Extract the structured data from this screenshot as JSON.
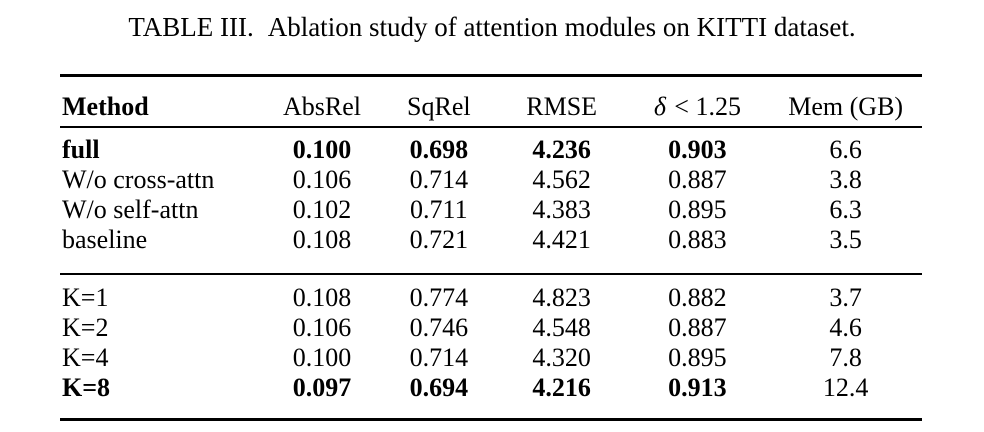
{
  "title": {
    "label": "TABLE III.",
    "caption": "Ablation study of attention modules on KITTI dataset."
  },
  "table": {
    "header": {
      "method": "Method",
      "absrel": "AbsRel",
      "sqrel": "SqRel",
      "rmse": "RMSE",
      "delta_symbol": "δ",
      "delta_rest": "< 1.25",
      "mem": "Mem (GB)"
    },
    "rows": [
      {
        "method": "full",
        "absrel": "0.100",
        "sqrel": "0.698",
        "rmse": "4.236",
        "delta": "0.903",
        "mem": "6.6"
      },
      {
        "method": "W/o cross-attn",
        "absrel": "0.106",
        "sqrel": "0.714",
        "rmse": "4.562",
        "delta": "0.887",
        "mem": "3.8"
      },
      {
        "method": "W/o self-attn",
        "absrel": "0.102",
        "sqrel": "0.711",
        "rmse": "4.383",
        "delta": "0.895",
        "mem": "6.3"
      },
      {
        "method": "baseline",
        "absrel": "0.108",
        "sqrel": "0.721",
        "rmse": "4.421",
        "delta": "0.883",
        "mem": "3.5"
      },
      {
        "method": "K=1",
        "absrel": "0.108",
        "sqrel": "0.774",
        "rmse": "4.823",
        "delta": "0.882",
        "mem": "3.7"
      },
      {
        "method": "K=2",
        "absrel": "0.106",
        "sqrel": "0.746",
        "rmse": "4.548",
        "delta": "0.887",
        "mem": "4.6"
      },
      {
        "method": "K=4",
        "absrel": "0.100",
        "sqrel": "0.714",
        "rmse": "4.320",
        "delta": "0.895",
        "mem": "7.8"
      },
      {
        "method": "K=8",
        "absrel": "0.097",
        "sqrel": "0.694",
        "rmse": "4.216",
        "delta": "0.913",
        "mem": "12.4"
      }
    ],
    "colors": {
      "text": "#000000",
      "background": "#ffffff",
      "rule": "#000000"
    }
  }
}
